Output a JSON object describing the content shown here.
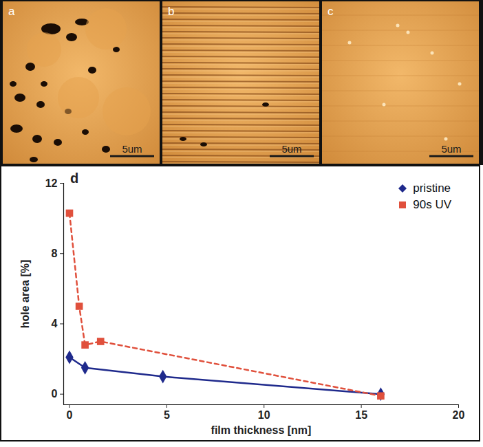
{
  "image_panels": [
    {
      "label": "a",
      "scale_bar": "5um"
    },
    {
      "label": "b",
      "scale_bar": "5um"
    },
    {
      "label": "c",
      "scale_bar": "5um"
    }
  ],
  "chart_data": {
    "type": "line",
    "panel_label": "d",
    "x_label": "film thickness [nm]",
    "y_label": "hole area [%]",
    "xlim": [
      -0.3,
      20
    ],
    "xticks": [
      0,
      5,
      10,
      15,
      20
    ],
    "ylim": [
      -0.6,
      12
    ],
    "yticks": [
      0,
      4,
      8,
      12
    ],
    "grid": false,
    "legend": "top-right",
    "series": [
      {
        "name": "pristine",
        "color": "#1f2a8c",
        "marker": "diamond",
        "line_style": "solid",
        "x": [
          0,
          0.8,
          4.8,
          16
        ],
        "values": [
          2.1,
          1.5,
          1.0,
          0.0
        ]
      },
      {
        "name": "90s UV",
        "color": "#e0503c",
        "marker": "square",
        "line_style": "dashed",
        "x": [
          0,
          0.5,
          0.8,
          1.6,
          16
        ],
        "values": [
          10.3,
          5.0,
          2.8,
          3.0,
          -0.1
        ]
      }
    ]
  }
}
